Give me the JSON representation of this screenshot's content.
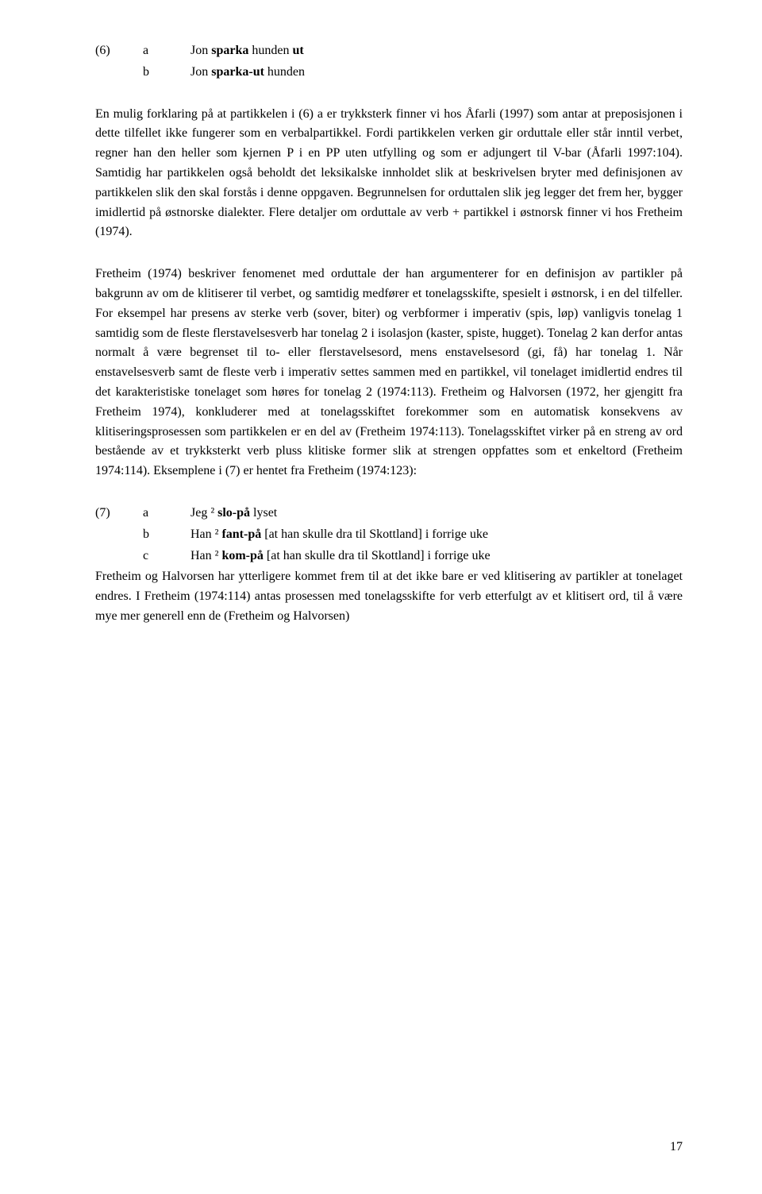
{
  "example6": {
    "num": "(6)",
    "a": {
      "letter": "a",
      "html": "Jon <b>sparka</b> hunden <b>ut</b>"
    },
    "b": {
      "letter": "b",
      "html": "Jon <b>sparka-ut</b> hunden",
      "indent": true
    }
  },
  "para1": {
    "html": "En mulig forklaring på at partikkelen i (6) a er trykksterk finner vi hos Åfarli (1997) som antar at preposisjonen i dette tilfellet ikke fungerer som en verbalpartikkel. Fordi partikkelen verken gir orduttale eller står inntil verbet, regner han den heller som kjernen P i en PP uten utfylling og som er adjungert til V-bar (Åfarli 1997:104). Samtidig har partikkelen også beholdt det leksikalske innholdet slik at beskrivelsen bryter med definisjonen av partikkelen slik den skal forstås i denne oppgaven. Begrunnelsen for orduttalen slik jeg legger det frem her, bygger imidlertid på østnorske dialekter. Flere detaljer om orduttale av verb + partikkel i østnorsk finner vi hos Fretheim (1974)."
  },
  "para2": {
    "html": "Fretheim (1974) beskriver fenomenet med orduttale der han argumenterer for en definisjon av partikler på bakgrunn av om de klitiserer til verbet, og samtidig medfører et tonelagsskifte, spesielt i østnorsk, i en del tilfeller. For eksempel har presens av sterke verb (sover, biter) og verbformer i imperativ (spis, løp) vanligvis tonelag 1 samtidig som de fleste flerstavelsesverb har tonelag 2 i isolasjon (kaster, spiste, hugget). Tonelag 2 kan derfor antas normalt å være begrenset til to- eller flerstavelsesord, mens enstavelsesord (gi, få) har tonelag 1. Når enstavelsesverb samt de fleste verb i imperativ settes sammen med en partikkel, vil tonelaget imidlertid endres til det karakteristiske tonelaget som høres for tonelag 2 (1974:113). Fretheim og Halvorsen (1972, her gjengitt fra Fretheim 1974), konkluderer med at tonelagsskiftet forekommer som en automatisk konsekvens av klitiseringsprosessen som partikkelen er en del av (Fretheim 1974:113). Tonelagsskiftet virker på en streng av ord bestående av et trykksterkt verb pluss klitiske former slik at strengen oppfattes som et enkeltord (Fretheim 1974:114). Eksemplene i (7) er hentet fra Fretheim (1974:123):"
  },
  "example7": {
    "num": "(7)",
    "a": {
      "letter": "a",
      "html": "Jeg ² <b>slo-på</b> lyset"
    },
    "b": {
      "letter": "b",
      "html": "Han ² <b>fant-på</b> [at han skulle dra til Skottland] i forrige uke"
    },
    "c": {
      "letter": "c",
      "html": "Han ² <b>kom-på</b> [at han skulle dra til Skottland] i forrige uke"
    }
  },
  "para3": {
    "html": "Fretheim og Halvorsen har ytterligere kommet frem til at det ikke bare er ved klitisering av partikler at tonelaget endres. I Fretheim (1974:114) antas prosessen med tonelagsskifte for verb etterfulgt av et klitisert ord, til å være mye mer generell enn de (Fretheim og Halvorsen)"
  },
  "pageNumber": "17"
}
